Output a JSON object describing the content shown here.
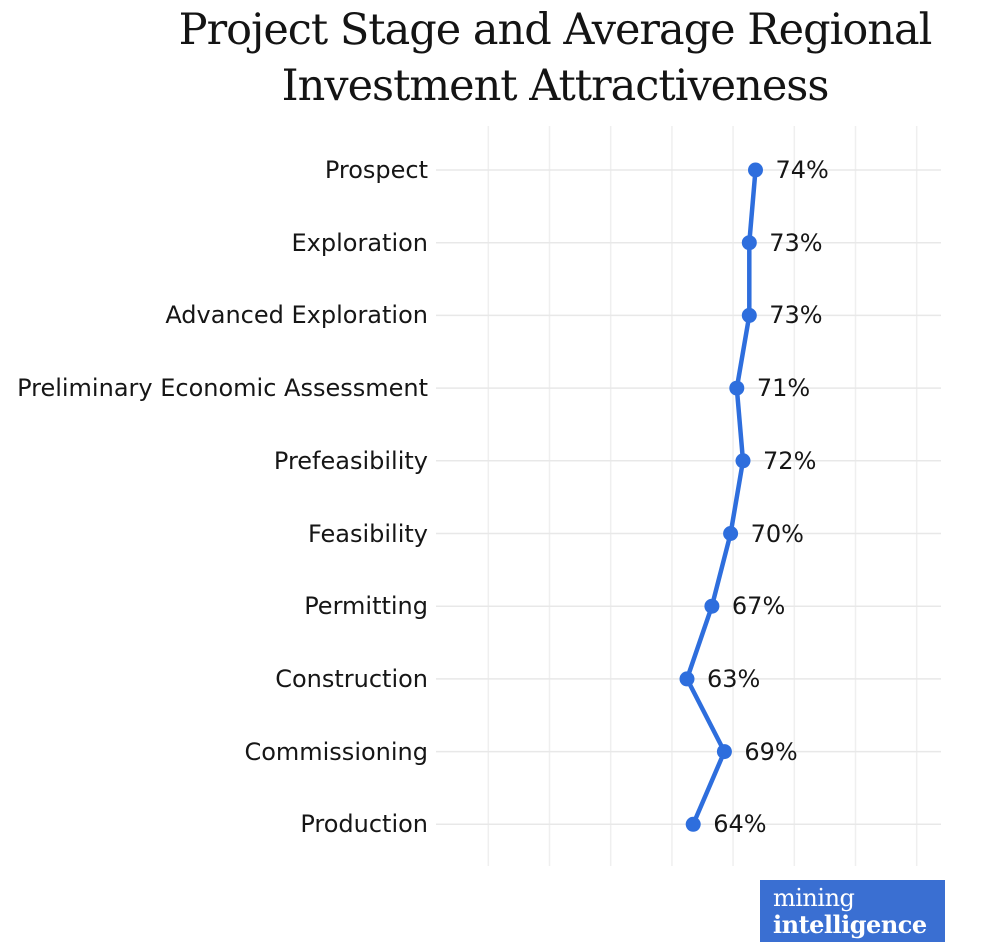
{
  "title": {
    "line1": "Project Stage and Average Regional",
    "line2": "Investment Attractiveness"
  },
  "chart_data": {
    "type": "line",
    "title": "Project Stage and Average Regional Investment Attractiveness",
    "orientation": "categories on y-axis, values on x-axis",
    "categories": [
      "Prospect",
      "Exploration",
      "Advanced Exploration",
      "Preliminary Economic Assessment",
      "Prefeasibility",
      "Feasibility",
      "Permitting",
      "Construction",
      "Commissioning",
      "Production"
    ],
    "values": [
      74,
      73,
      73,
      71,
      72,
      70,
      67,
      63,
      69,
      64
    ],
    "value_labels": [
      "74%",
      "73%",
      "73%",
      "71%",
      "72%",
      "70%",
      "67%",
      "63%",
      "69%",
      "64%"
    ],
    "unit": "%",
    "xlabel": "",
    "ylabel": "",
    "grid": true,
    "axis_tick_labels_shown": false,
    "legend": "none",
    "line_color": "#2e6edd",
    "marker_color": "#2e6edd",
    "label_color": "#161616",
    "h_grid_color": "#e8e8e8",
    "v_grid_color": "#efefef"
  },
  "logo": {
    "line1": "mining",
    "line2": "intelligence",
    "background": "#3a6fd2",
    "text_color": "#ffffff"
  }
}
